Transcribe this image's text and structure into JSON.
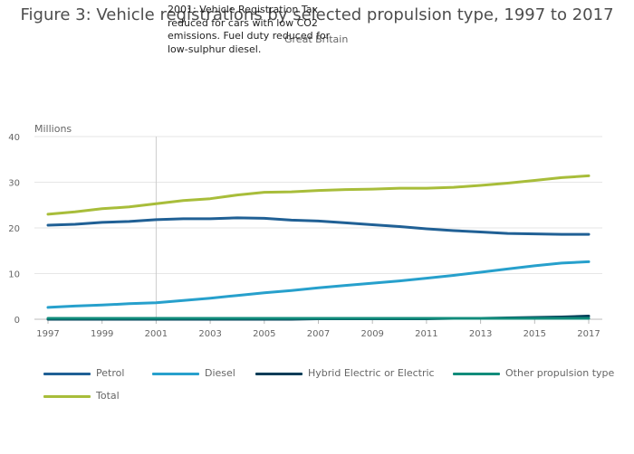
{
  "chart_data": {
    "type": "line",
    "title": "Figure 3: Vehicle registrations by selected propulsion type, 1997 to 2017",
    "subtitle": "Great Britain",
    "ylabel": "Millions",
    "ylim": [
      0,
      40
    ],
    "yticks": [
      0,
      10,
      20,
      30,
      40
    ],
    "xlim": [
      1997,
      2017
    ],
    "xticks": [
      "1997",
      "1999",
      "2001",
      "2003",
      "2005",
      "2007",
      "2009",
      "2011",
      "2013",
      "2015",
      "2017"
    ],
    "grid": true,
    "legend_position": "bottom",
    "annotation": {
      "x": 2001,
      "text": "2001: Vehicle Registration Tax reduced for cars with low CO2 emissions. Fuel duty reduced for low-sulphur diesel."
    },
    "x": [
      1997,
      1998,
      1999,
      2000,
      2001,
      2002,
      2003,
      2004,
      2005,
      2006,
      2007,
      2008,
      2009,
      2010,
      2011,
      2012,
      2013,
      2014,
      2015,
      2016,
      2017
    ],
    "series": [
      {
        "name": "Petrol",
        "color": "#206095",
        "values": [
          20.6,
          20.8,
          21.2,
          21.4,
          21.8,
          22.0,
          22.0,
          22.2,
          22.1,
          21.7,
          21.5,
          21.1,
          20.7,
          20.3,
          19.8,
          19.4,
          19.1,
          18.8,
          18.7,
          18.6,
          18.6
        ]
      },
      {
        "name": "Diesel",
        "color": "#27a0cc",
        "values": [
          2.6,
          2.9,
          3.1,
          3.4,
          3.6,
          4.1,
          4.6,
          5.2,
          5.8,
          6.3,
          6.9,
          7.4,
          7.9,
          8.4,
          9.0,
          9.6,
          10.3,
          11.0,
          11.7,
          12.3,
          12.6
        ]
      },
      {
        "name": "Hybrid Electric or Electric",
        "color": "#003c57",
        "values": [
          0.0,
          0.0,
          0.0,
          0.0,
          0.0,
          0.0,
          0.0,
          0.0,
          0.0,
          0.0,
          0.1,
          0.1,
          0.1,
          0.1,
          0.1,
          0.2,
          0.2,
          0.3,
          0.4,
          0.5,
          0.7
        ]
      },
      {
        "name": "Other propulsion type",
        "color": "#118c7b",
        "values": [
          0.2,
          0.2,
          0.2,
          0.2,
          0.2,
          0.2,
          0.2,
          0.2,
          0.2,
          0.2,
          0.2,
          0.2,
          0.2,
          0.2,
          0.2,
          0.2,
          0.2,
          0.2,
          0.2,
          0.2,
          0.2
        ]
      },
      {
        "name": "Total",
        "color": "#a8bd3a",
        "values": [
          23.0,
          23.5,
          24.2,
          24.6,
          25.3,
          26.0,
          26.4,
          27.2,
          27.8,
          27.9,
          28.2,
          28.4,
          28.5,
          28.7,
          28.7,
          28.9,
          29.3,
          29.8,
          30.4,
          31.0,
          31.4
        ]
      }
    ]
  }
}
